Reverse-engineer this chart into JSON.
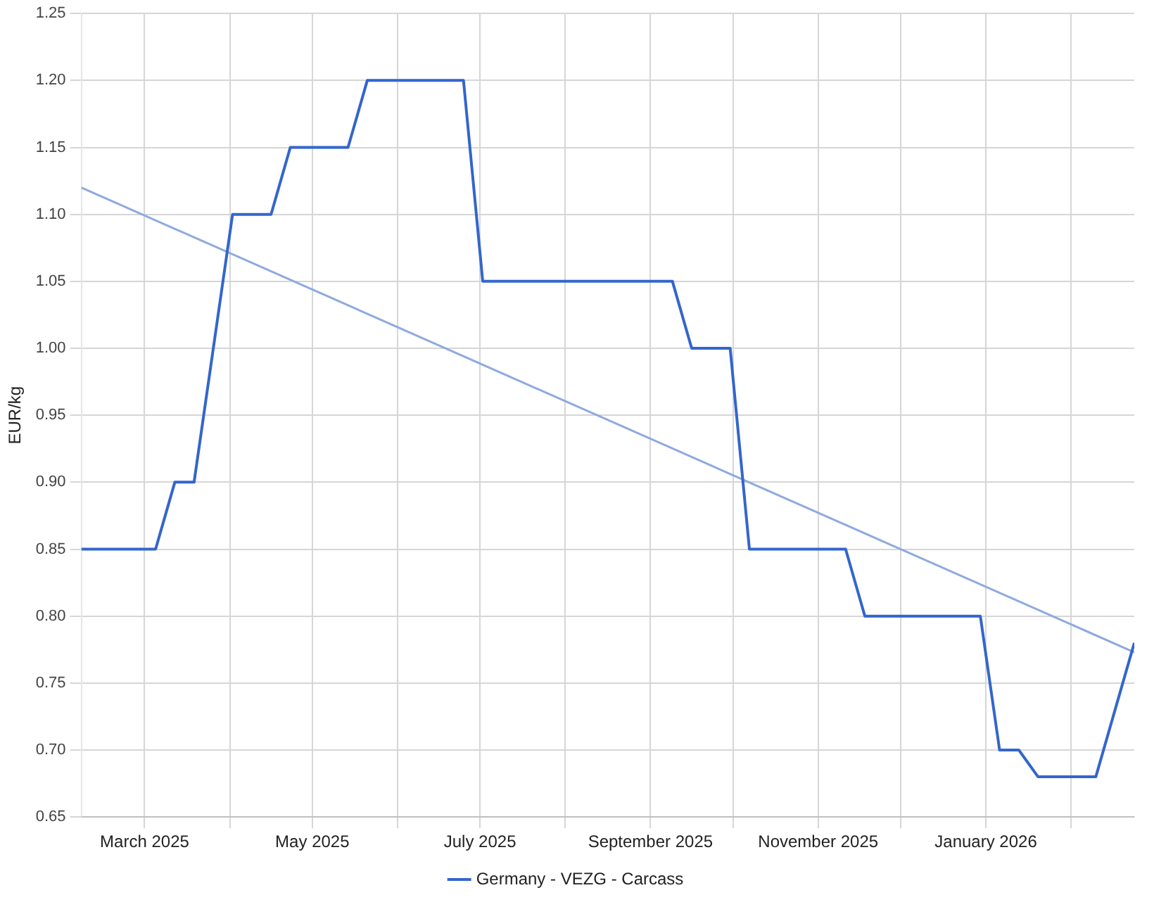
{
  "chart_data": {
    "type": "line",
    "ylabel": "EUR/kg",
    "legend": "bottom",
    "grid": true,
    "marker": "none",
    "line_style": "solid",
    "xlim": [
      "2025-02-06",
      "2026-02-24"
    ],
    "xticks": [
      {
        "value": "2025-03-01",
        "label": "March 2025"
      },
      {
        "value": "2025-04-01",
        "label": null
      },
      {
        "value": "2025-05-01",
        "label": "May 2025"
      },
      {
        "value": "2025-06-01",
        "label": null
      },
      {
        "value": "2025-07-01",
        "label": "July 2025"
      },
      {
        "value": "2025-08-01",
        "label": null
      },
      {
        "value": "2025-09-01",
        "label": "September 2025"
      },
      {
        "value": "2025-10-01",
        "label": null
      },
      {
        "value": "2025-11-01",
        "label": "November 2025"
      },
      {
        "value": "2025-12-01",
        "label": null
      },
      {
        "value": "2026-01-01",
        "label": "January 2026"
      },
      {
        "value": "2026-02-01",
        "label": null
      }
    ],
    "ylim": [
      0.65,
      1.25
    ],
    "yticks": [
      0.65,
      {
        "value": 0.7,
        "label": "0.70"
      },
      0.75,
      {
        "value": 0.8,
        "label": "0.80"
      },
      0.85,
      {
        "value": 0.9,
        "label": "0.90"
      },
      0.95,
      {
        "value": 1,
        "label": "1.00"
      },
      1.05,
      {
        "value": 1.1,
        "label": "1.10"
      },
      1.15,
      {
        "value": 1.2,
        "label": "1.20"
      },
      1.25
    ],
    "series": [
      {
        "name": "Germany - VEZG - Carcass",
        "color": "#3366cc",
        "x": [
          "2025-02-06",
          "2025-03-05",
          "2025-03-12",
          "2025-03-19",
          "2025-04-02",
          "2025-04-16",
          "2025-04-23",
          "2025-05-14",
          "2025-05-21",
          "2025-06-25",
          "2025-07-02",
          "2025-09-09",
          "2025-09-16",
          "2025-09-30",
          "2025-10-07",
          "2025-11-11",
          "2025-11-18",
          "2025-12-30",
          "2026-01-06",
          "2026-01-13",
          "2026-01-20",
          "2026-02-10",
          "2026-02-24"
        ],
        "values": [
          0.85,
          0.85,
          0.9,
          0.9,
          1.1,
          1.1,
          1.15,
          1.15,
          1.2,
          1.2,
          1.05,
          1.05,
          1.0,
          1.0,
          0.85,
          0.85,
          0.8,
          0.8,
          0.7,
          0.7,
          0.68,
          0.68,
          0.78
        ]
      },
      {
        "type": "line",
        "color": "#8eaade",
        "x": [
          "2025-02-06",
          "2026-02-24"
        ],
        "values": [
          1.12,
          0.773
        ]
      }
    ]
  }
}
